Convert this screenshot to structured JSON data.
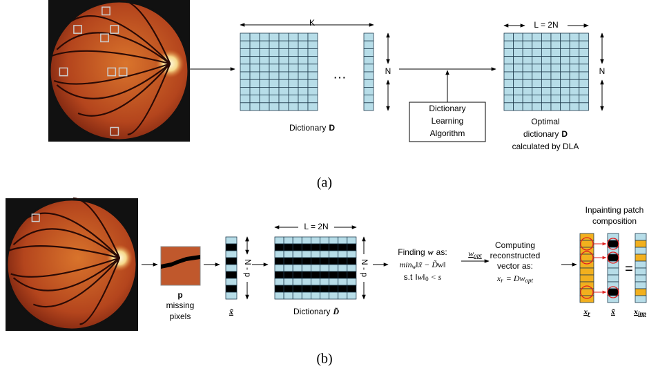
{
  "panel_a": {
    "label": "(a)",
    "dictionary": {
      "width_label": "K",
      "height_label": "N",
      "ellipsis": "…",
      "caption": "Dictionary",
      "symbol": "D"
    },
    "algorithm": {
      "lines": [
        "Dictionary",
        "Learning",
        "Algorithm"
      ]
    },
    "optimal": {
      "width_label": "L = 2N",
      "height_label": "N",
      "caption_lines": [
        "Optimal",
        "dictionary",
        "calculated by DLA"
      ],
      "symbol": "D"
    }
  },
  "panel_b": {
    "label": "(b)",
    "patch": {
      "symbol": "p",
      "caption_lines": [
        "missing",
        "pixels"
      ]
    },
    "vector": {
      "symbol": "x̃",
      "height_label": "N - p"
    },
    "dictionary": {
      "width_label": "L = 2N",
      "height_label": "N - p",
      "caption": "Dictionary",
      "symbol": "D̃"
    },
    "optimization": {
      "heading": "Finding",
      "heading_symbol": "w",
      "heading_end": "as:",
      "min": "min",
      "min_sub": "w",
      "objective": "‖x̃ − D̃w‖",
      "constraint_prefix": "s.t",
      "constraint": "‖w‖",
      "constraint_sub": "0",
      "constraint_end": "< s"
    },
    "arrow_label": {
      "base": "w",
      "sub": "opt"
    },
    "reconstruction": {
      "lines": [
        "Computing",
        "reconstructed",
        "vector as:"
      ],
      "lhs": {
        "base": "x",
        "sub": "r"
      },
      "rhs": {
        "base": "= Dw",
        "sub": "opt"
      }
    },
    "composition": {
      "title_lines": [
        "Inpainting patch",
        "composition"
      ],
      "equals": "=",
      "labels": [
        {
          "base": "x",
          "sub": "r"
        },
        {
          "base": "x̃"
        },
        {
          "base": "x",
          "sub": "inp"
        }
      ]
    }
  }
}
